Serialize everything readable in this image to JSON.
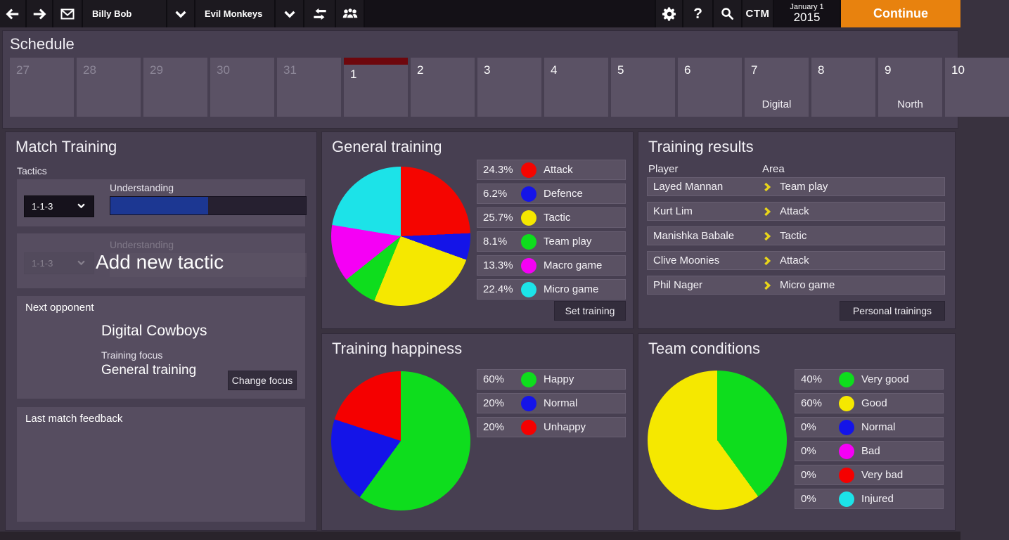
{
  "topbar": {
    "user_name": "Billy Bob",
    "team_name": "Evil Monkeys",
    "ctm": "CTM",
    "help": "?",
    "date_top": "January 1",
    "date_bottom": "2015",
    "continue_label": "Continue"
  },
  "schedule": {
    "title": "Schedule",
    "days": [
      {
        "num": "27",
        "muted": true
      },
      {
        "num": "28",
        "muted": true
      },
      {
        "num": "29",
        "muted": true
      },
      {
        "num": "30",
        "muted": true
      },
      {
        "num": "31",
        "muted": true
      },
      {
        "num": "1",
        "current": true
      },
      {
        "num": "2"
      },
      {
        "num": "3"
      },
      {
        "num": "4"
      },
      {
        "num": "5"
      },
      {
        "num": "6"
      },
      {
        "num": "7",
        "note": "Digital"
      },
      {
        "num": "8"
      },
      {
        "num": "9",
        "note": "North"
      },
      {
        "num": "10"
      }
    ]
  },
  "match_training": {
    "title": "Match Training",
    "tactics_label": "Tactics",
    "tactic": {
      "name": "1-1-3",
      "understanding_label": "Understanding",
      "understanding_percent": 50
    },
    "add_tactic": {
      "name": "1-1-3",
      "understanding_label": "Understanding",
      "overlay_label": "Add new tactic"
    },
    "next_opponent": {
      "label": "Next opponent",
      "team": "Digital Cowboys",
      "focus_label": "Training focus",
      "focus_value": "General training",
      "change_button": "Change focus"
    },
    "feedback_label": "Last match feedback"
  },
  "general_training": {
    "title": "General training",
    "set_button": "Set training"
  },
  "training_happiness": {
    "title": "Training happiness"
  },
  "team_conditions": {
    "title": "Team conditions"
  },
  "training_results": {
    "title": "Training results",
    "col_player": "Player",
    "col_area": "Area",
    "rows": [
      {
        "player": "Layed Mannan",
        "area": "Team play"
      },
      {
        "player": "Kurt Lim",
        "area": "Attack"
      },
      {
        "player": "Manishka Babale",
        "area": "Tactic"
      },
      {
        "player": "Clive Moonies",
        "area": "Attack"
      },
      {
        "player": "Phil Nager",
        "area": "Micro game"
      }
    ],
    "button": "Personal trainings"
  },
  "chart_data": [
    {
      "id": "general_training",
      "type": "pie",
      "title": "General training",
      "start_angle_deg": 0,
      "direction": "clockwise",
      "legend_position": "right",
      "slices": [
        {
          "label": "Attack",
          "value": 24.3,
          "display": "24.3%",
          "color": "#f50500"
        },
        {
          "label": "Defence",
          "value": 6.2,
          "display": "6.2%",
          "color": "#1414e8"
        },
        {
          "label": "Tactic",
          "value": 25.7,
          "display": "25.7%",
          "color": "#f5e800"
        },
        {
          "label": "Team play",
          "value": 8.1,
          "display": "8.1%",
          "color": "#0edd1d"
        },
        {
          "label": "Macro game",
          "value": 13.3,
          "display": "13.3%",
          "color": "#f500f5"
        },
        {
          "label": "Micro game",
          "value": 22.4,
          "display": "22.4%",
          "color": "#1ce3e8"
        }
      ]
    },
    {
      "id": "training_happiness",
      "type": "pie",
      "title": "Training happiness",
      "start_angle_deg": 0,
      "direction": "clockwise",
      "legend_position": "right",
      "slices": [
        {
          "label": "Happy",
          "value": 60,
          "display": "60%",
          "color": "#0edd1d"
        },
        {
          "label": "Normal",
          "value": 20,
          "display": "20%",
          "color": "#1414e8"
        },
        {
          "label": "Unhappy",
          "value": 20,
          "display": "20%",
          "color": "#f50000"
        }
      ]
    },
    {
      "id": "team_conditions",
      "type": "pie",
      "title": "Team conditions",
      "start_angle_deg": 0,
      "direction": "clockwise",
      "legend_position": "right",
      "slices": [
        {
          "label": "Very good",
          "value": 40,
          "display": "40%",
          "color": "#0edd1d"
        },
        {
          "label": "Good",
          "value": 60,
          "display": "60%",
          "color": "#f5e800"
        },
        {
          "label": "Normal",
          "value": 0,
          "display": "0%",
          "color": "#1414e8"
        },
        {
          "label": "Bad",
          "value": 0,
          "display": "0%",
          "color": "#f500f5"
        },
        {
          "label": "Very bad",
          "value": 0,
          "display": "0%",
          "color": "#f50000"
        },
        {
          "label": "Injured",
          "value": 0,
          "display": "0%",
          "color": "#1ce3e8"
        }
      ]
    }
  ],
  "colors": {
    "accent_orange": "#e8820e",
    "progress_fill": "#1c3792",
    "current_day_marker": "#6e070d",
    "row_chevron": "#e8d519"
  }
}
